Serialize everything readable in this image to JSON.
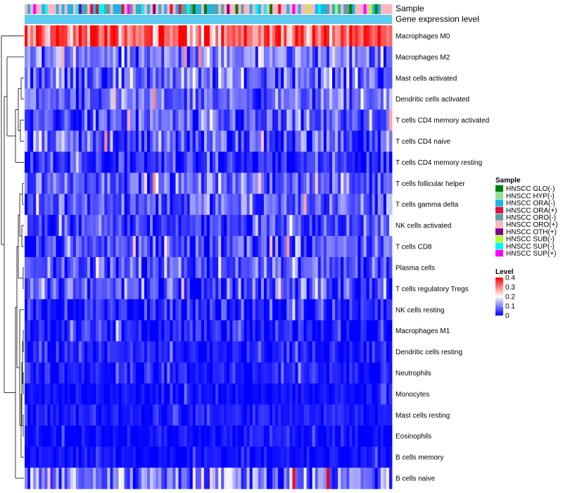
{
  "chart_data": {
    "type": "heatmap",
    "annotation_labels": [
      "Sample",
      "Gene expression level"
    ],
    "rows": [
      "Macrophages M0",
      "Macrophages M2",
      "Mast cells activated",
      "Dendritic cells activated",
      "T cells CD4 memory activated",
      "T cells CD4 naive",
      "T cells CD4 memory resting",
      "T cells follicular helper",
      "T cells gamma delta",
      "NK cells activated",
      "T cells CD8",
      "Plasma cells",
      "T cells regulatory  Tregs",
      "NK cells resting",
      "Macrophages M1",
      "Dendritic cells resting",
      "Neutrophils",
      "Monocytes",
      "Mast cells resting",
      "Eosinophils",
      "B cells memory",
      "B cells naive"
    ],
    "row_mean_level": [
      0.32,
      0.1,
      0.09,
      0.08,
      0.06,
      0.06,
      0.03,
      0.08,
      0.07,
      0.05,
      0.06,
      0.06,
      0.06,
      0.03,
      0.02,
      0.02,
      0.02,
      0.01,
      0.02,
      0.01,
      0.01,
      0.1
    ],
    "row_spread": [
      0.08,
      0.06,
      0.07,
      0.05,
      0.06,
      0.07,
      0.05,
      0.05,
      0.06,
      0.05,
      0.06,
      0.05,
      0.06,
      0.05,
      0.04,
      0.03,
      0.03,
      0.02,
      0.02,
      0.02,
      0.02,
      0.08
    ],
    "n_samples": 129,
    "value_range": [
      0,
      0.4
    ],
    "sample_legend": {
      "title": "Sample",
      "entries": [
        {
          "label": "HNSCC GLO(-)",
          "color": "#007f00"
        },
        {
          "label": "HNSCC HYP(-)",
          "color": "#8fe28f"
        },
        {
          "label": "HNSCC ORA(-)",
          "color": "#1eb4e6"
        },
        {
          "label": "HNSCC ORA(+)",
          "color": "#dc143c"
        },
        {
          "label": "HNSCC ORO(-)",
          "color": "#5f9ea0"
        },
        {
          "label": "HNSCC ORO(+)",
          "color": "#ffb6c1"
        },
        {
          "label": "HNSCC OTH(+)",
          "color": "#800080"
        },
        {
          "label": "HNSCC SUB(-)",
          "color": "#adff2f"
        },
        {
          "label": "HNSCC SUP(-)",
          "color": "#00f5f5"
        },
        {
          "label": "HNSCC SUP(+)",
          "color": "#ff00ff"
        }
      ]
    },
    "level_legend": {
      "title": "Level",
      "ticks": [
        "0.4",
        "0.3",
        "0.2",
        "0.1",
        "0"
      ],
      "tick_values": [
        0.4,
        0.3,
        0.2,
        0.1,
        0
      ],
      "colors": [
        "#0000ff",
        "#ffffff",
        "#ff0000"
      ]
    },
    "expression_bar_color": "#5ecbf0"
  }
}
